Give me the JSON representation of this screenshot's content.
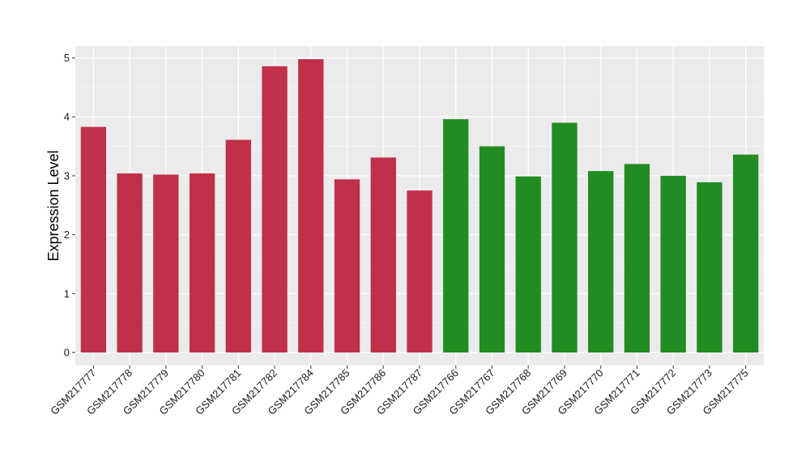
{
  "chart_data": {
    "type": "bar",
    "title": "",
    "xlabel": "",
    "ylabel": "Expression Level",
    "ylim": [
      -0.22,
      5.2
    ],
    "yticks": [
      0,
      1,
      2,
      3,
      4,
      5
    ],
    "grid": true,
    "legend": "none",
    "categories": [
      "GSM217777",
      "GSM217778",
      "GSM217779",
      "GSM217780",
      "GSM217781",
      "GSM217782",
      "GSM217784",
      "GSM217785",
      "GSM217786",
      "GSM217787",
      "GSM217766",
      "GSM217767",
      "GSM217768",
      "GSM217769",
      "GSM217770",
      "GSM217771",
      "GSM217772",
      "GSM217773",
      "GSM217775"
    ],
    "values": [
      3.83,
      3.04,
      3.02,
      3.04,
      3.61,
      4.86,
      4.98,
      2.94,
      3.31,
      2.75,
      3.96,
      3.5,
      2.99,
      3.9,
      3.08,
      3.2,
      3.0,
      2.89,
      3.36
    ],
    "groups": [
      {
        "color": "#c0304a",
        "count": 10
      },
      {
        "color": "#228b22",
        "count": 9
      }
    ],
    "colors": {
      "panel_background": "#ebebeb",
      "grid_major": "#ffffff",
      "group_1": "#c0304a",
      "group_2": "#228b22"
    }
  }
}
